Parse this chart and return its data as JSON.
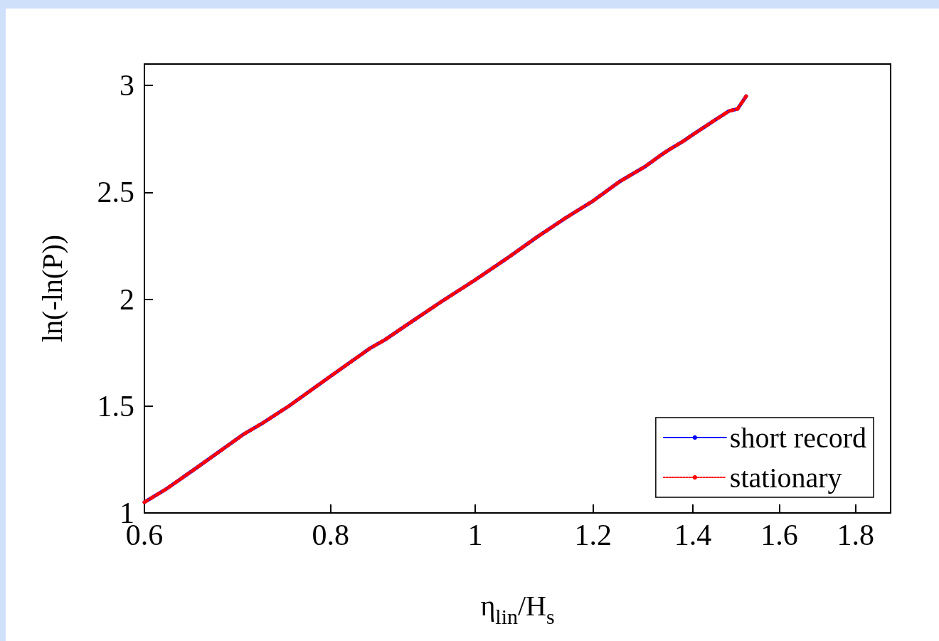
{
  "chart_data": {
    "type": "line",
    "xlabel": "η$_{lin}$/H$_{s}$",
    "ylabel": "ln(-ln(P))",
    "log": "x",
    "x": [
      0.6,
      0.62,
      0.65,
      0.7,
      0.72,
      0.75,
      0.8,
      0.85,
      0.87,
      0.9,
      0.95,
      1.0,
      1.05,
      1.1,
      1.15,
      1.2,
      1.25,
      1.3,
      1.33,
      1.35,
      1.38,
      1.4,
      1.45,
      1.48,
      1.5,
      1.52
    ],
    "series": [
      {
        "name": "short record",
        "color": "#0000ff",
        "line_style": "solid",
        "values": [
          1.05,
          1.11,
          1.21,
          1.37,
          1.42,
          1.5,
          1.64,
          1.77,
          1.81,
          1.88,
          1.99,
          2.09,
          2.19,
          2.29,
          2.38,
          2.46,
          2.55,
          2.62,
          2.67,
          2.7,
          2.74,
          2.77,
          2.84,
          2.88,
          2.89,
          2.95
        ]
      },
      {
        "name": "stationary",
        "color": "#ff0000",
        "line_style": "dotted",
        "values": [
          1.05,
          1.11,
          1.21,
          1.37,
          1.42,
          1.5,
          1.64,
          1.77,
          1.81,
          1.88,
          1.99,
          2.09,
          2.19,
          2.29,
          2.38,
          2.46,
          2.55,
          2.62,
          2.67,
          2.7,
          2.74,
          2.77,
          2.84,
          2.88,
          2.89,
          2.95
        ]
      }
    ],
    "xlim": [
      0.6,
      1.9
    ],
    "xticks": [
      0.6,
      0.8,
      1,
      1.2,
      1.4,
      1.6,
      1.8
    ],
    "ylim": [
      1,
      3.1
    ],
    "yticks": [
      1,
      1.5,
      2,
      2.5,
      3
    ],
    "grid": false,
    "legend": "bottom right",
    "marker": "none"
  }
}
